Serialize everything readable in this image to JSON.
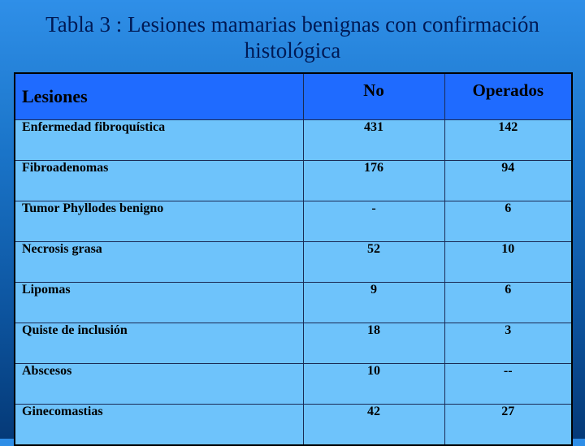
{
  "title": {
    "line1": "Tabla 3 : Lesiones mamarias benignas con confirmación",
    "line2": "histológica"
  },
  "table": {
    "headers": [
      "Lesiones",
      "No",
      "Operados"
    ],
    "rows": [
      [
        "Enfermedad fibroquística",
        "431",
        "142"
      ],
      [
        "Fibroadenomas",
        "176",
        "94"
      ],
      [
        "Tumor Phyllodes benigno",
        "-",
        "6"
      ],
      [
        "Necrosis grasa",
        "52",
        "10"
      ],
      [
        "Lipomas",
        "9",
        "6"
      ],
      [
        "Quiste de inclusión",
        "18",
        "3"
      ],
      [
        "Abscesos",
        "10",
        "--"
      ],
      [
        "Ginecomastias",
        "42",
        "27"
      ]
    ]
  },
  "colors": {
    "header_bg": "#1f6bff",
    "cell_bg": "#6ec3fb",
    "title_text": "#001a55"
  }
}
